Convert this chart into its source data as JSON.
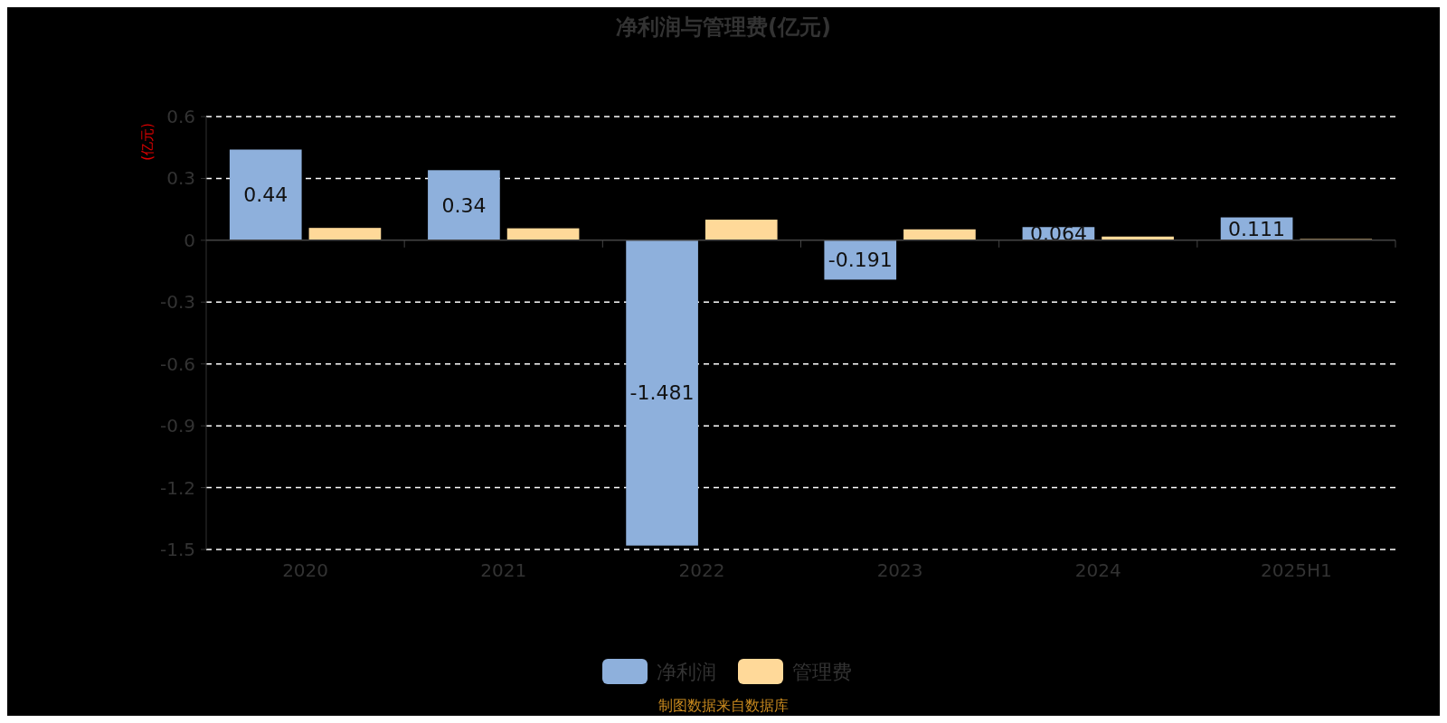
{
  "chart_data": {
    "type": "bar",
    "title": "净利润与管理费(亿元)",
    "ylabel": "(亿元)",
    "categories": [
      "2020",
      "2021",
      "2022",
      "2023",
      "2024",
      "2025H1"
    ],
    "series": [
      {
        "name": "净利润",
        "color": "#8eb0dc",
        "values": [
          0.44,
          0.34,
          -1.481,
          -0.191,
          0.064,
          0.111
        ],
        "value_labels": [
          "0.44",
          "0.34",
          "-1.481",
          "-0.191",
          "0.064",
          "0.111"
        ]
      },
      {
        "name": "管理费",
        "color": "#ffd999",
        "values": [
          0.06,
          0.058,
          0.1,
          0.053,
          0.018,
          0.006
        ]
      }
    ],
    "ylim": [
      -1.5,
      0.6
    ],
    "yticks": [
      -1.5,
      -1.2,
      -0.9,
      -0.6,
      -0.3,
      0,
      0.3,
      0.6
    ],
    "grid": "y",
    "legend": "bottom",
    "annotations": [
      "制图数据来自数据库"
    ]
  }
}
